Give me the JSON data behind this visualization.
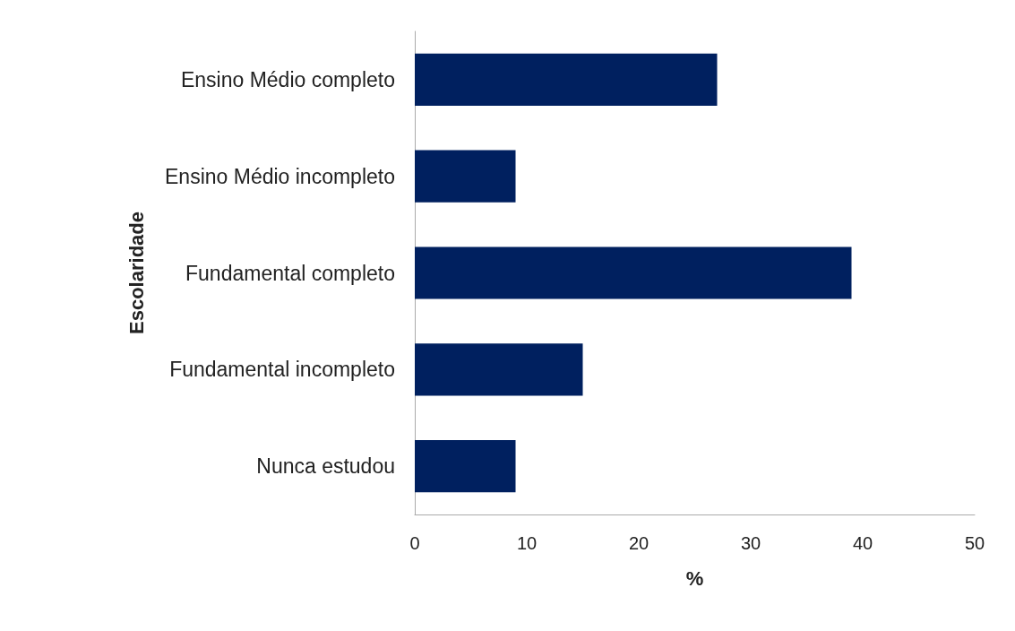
{
  "chart_data": {
    "type": "bar",
    "orientation": "horizontal",
    "xlabel": "%",
    "ylabel": "Escolaridade",
    "categories": [
      "Ensino Médio completo",
      "Ensino Médio incompleto",
      "Fundamental completo",
      "Fundamental incompleto",
      "Nunca estudou"
    ],
    "values": [
      27,
      9,
      39,
      15,
      9
    ],
    "color": "#00205f",
    "xlim": [
      0,
      50
    ],
    "xticks": [
      0,
      10,
      20,
      30,
      40,
      50
    ],
    "grid": false
  }
}
